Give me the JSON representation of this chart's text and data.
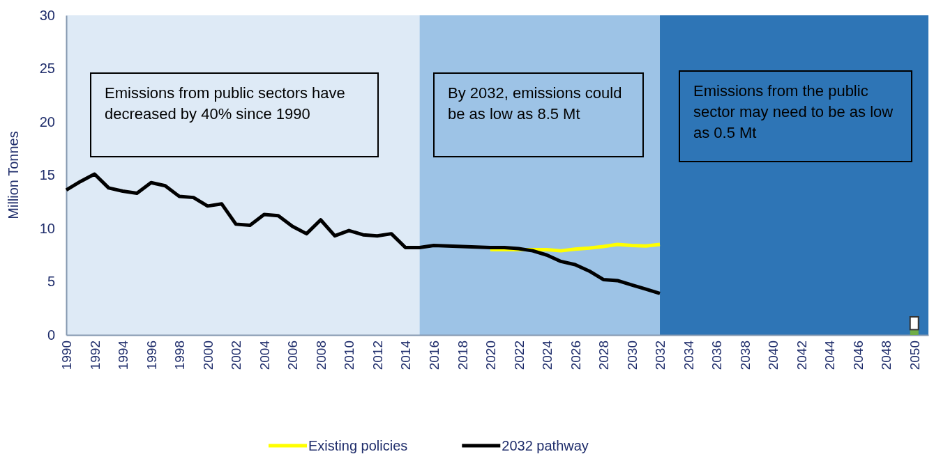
{
  "chart_data": {
    "type": "line",
    "ylabel": "Million Tonnes",
    "xlim": [
      1990,
      2051
    ],
    "xticks": [
      1990,
      1992,
      1994,
      1996,
      1998,
      2000,
      2002,
      2004,
      2006,
      2008,
      2010,
      2012,
      2014,
      2016,
      2018,
      2020,
      2022,
      2024,
      2026,
      2028,
      2030,
      2032,
      2034,
      2036,
      2038,
      2040,
      2042,
      2044,
      2046,
      2048,
      2050
    ],
    "ylim": [
      0,
      30
    ],
    "yticks": [
      0,
      5,
      10,
      15,
      20,
      25,
      30
    ],
    "series": [
      {
        "name": "Existing policies",
        "color": "#ffff00",
        "x": [
          2020,
          2021,
          2022,
          2023,
          2024,
          2025,
          2026,
          2027,
          2028,
          2029,
          2030,
          2031,
          2032
        ],
        "values": [
          8.0,
          8.0,
          8.0,
          8.0,
          8.0,
          7.9,
          8.05,
          8.15,
          8.3,
          8.5,
          8.4,
          8.35,
          8.5
        ]
      },
      {
        "name": "2032 pathway",
        "color": "#000000",
        "x": [
          1990,
          1991,
          1992,
          1993,
          1994,
          1995,
          1996,
          1997,
          1998,
          1999,
          2000,
          2001,
          2002,
          2003,
          2004,
          2005,
          2006,
          2007,
          2008,
          2009,
          2010,
          2011,
          2012,
          2013,
          2014,
          2015,
          2016,
          2017,
          2018,
          2019,
          2020,
          2021,
          2022,
          2023,
          2024,
          2025,
          2026,
          2027,
          2028,
          2029,
          2030,
          2031,
          2032
        ],
        "values": [
          13.6,
          14.4,
          15.1,
          13.8,
          13.5,
          13.3,
          14.3,
          14.0,
          13.0,
          12.9,
          12.1,
          12.3,
          10.4,
          10.3,
          11.3,
          11.2,
          10.2,
          9.5,
          10.8,
          9.3,
          9.8,
          9.4,
          9.3,
          9.5,
          8.2,
          8.2,
          8.4,
          8.35,
          8.3,
          8.25,
          8.2,
          8.2,
          8.1,
          7.9,
          7.5,
          6.9,
          6.6,
          6.0,
          5.2,
          5.1,
          4.7,
          4.3,
          3.9
        ]
      },
      {
        "type": "bar",
        "color": "#70ad47",
        "x": [
          2050
        ],
        "values": [
          0.5
        ]
      },
      {
        "type": "bar",
        "color": "#ffffff",
        "x": [
          2050
        ],
        "values": [
          1.2
        ]
      }
    ],
    "bands": [
      {
        "axis": "x",
        "from": 1990,
        "to": 2015,
        "color": "#deeaf6"
      },
      {
        "axis": "x",
        "from": 2015,
        "to": 2032,
        "color": "#9dc3e6"
      },
      {
        "axis": "x",
        "from": 2032,
        "to": 2051,
        "color": "#2e75b6"
      }
    ],
    "annotations": [
      "Emissions from public sectors have decreased by 40% since 1990",
      "By 2032, emissions could be as low as 8.5 Mt",
      "Emissions from the public sector may need to be as low as 0.5 Mt"
    ],
    "stacked": true,
    "legend": "bottom",
    "grid": false
  }
}
